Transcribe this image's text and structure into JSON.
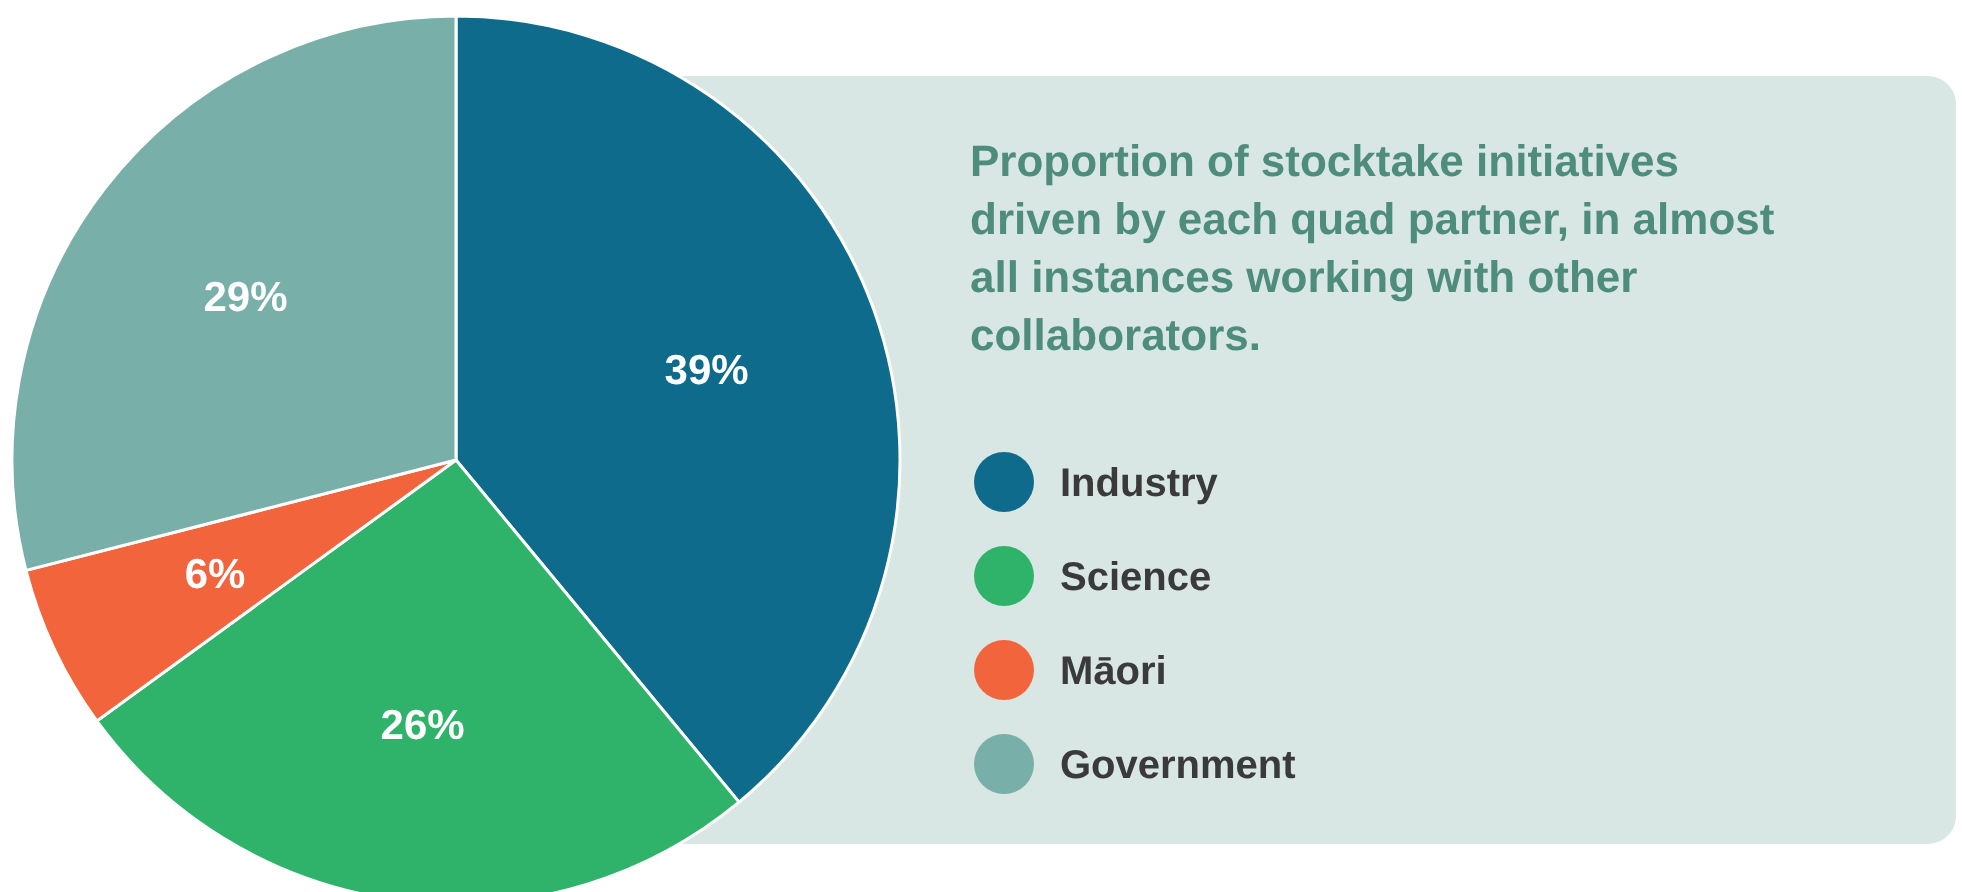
{
  "chart_data": {
    "type": "pie",
    "title": "Proportion of stocktake initiatives driven by each quad partner, in almost all instances working with other collaborators.",
    "categories": [
      "Industry",
      "Science",
      "Māori",
      "Government"
    ],
    "values": [
      39,
      26,
      6,
      29
    ],
    "colors": [
      "#0e6b8c",
      "#2fb36a",
      "#f2643b",
      "#78b0a9"
    ],
    "value_labels": [
      "39%",
      "26%",
      "6%",
      "29%"
    ],
    "legend": "right"
  }
}
